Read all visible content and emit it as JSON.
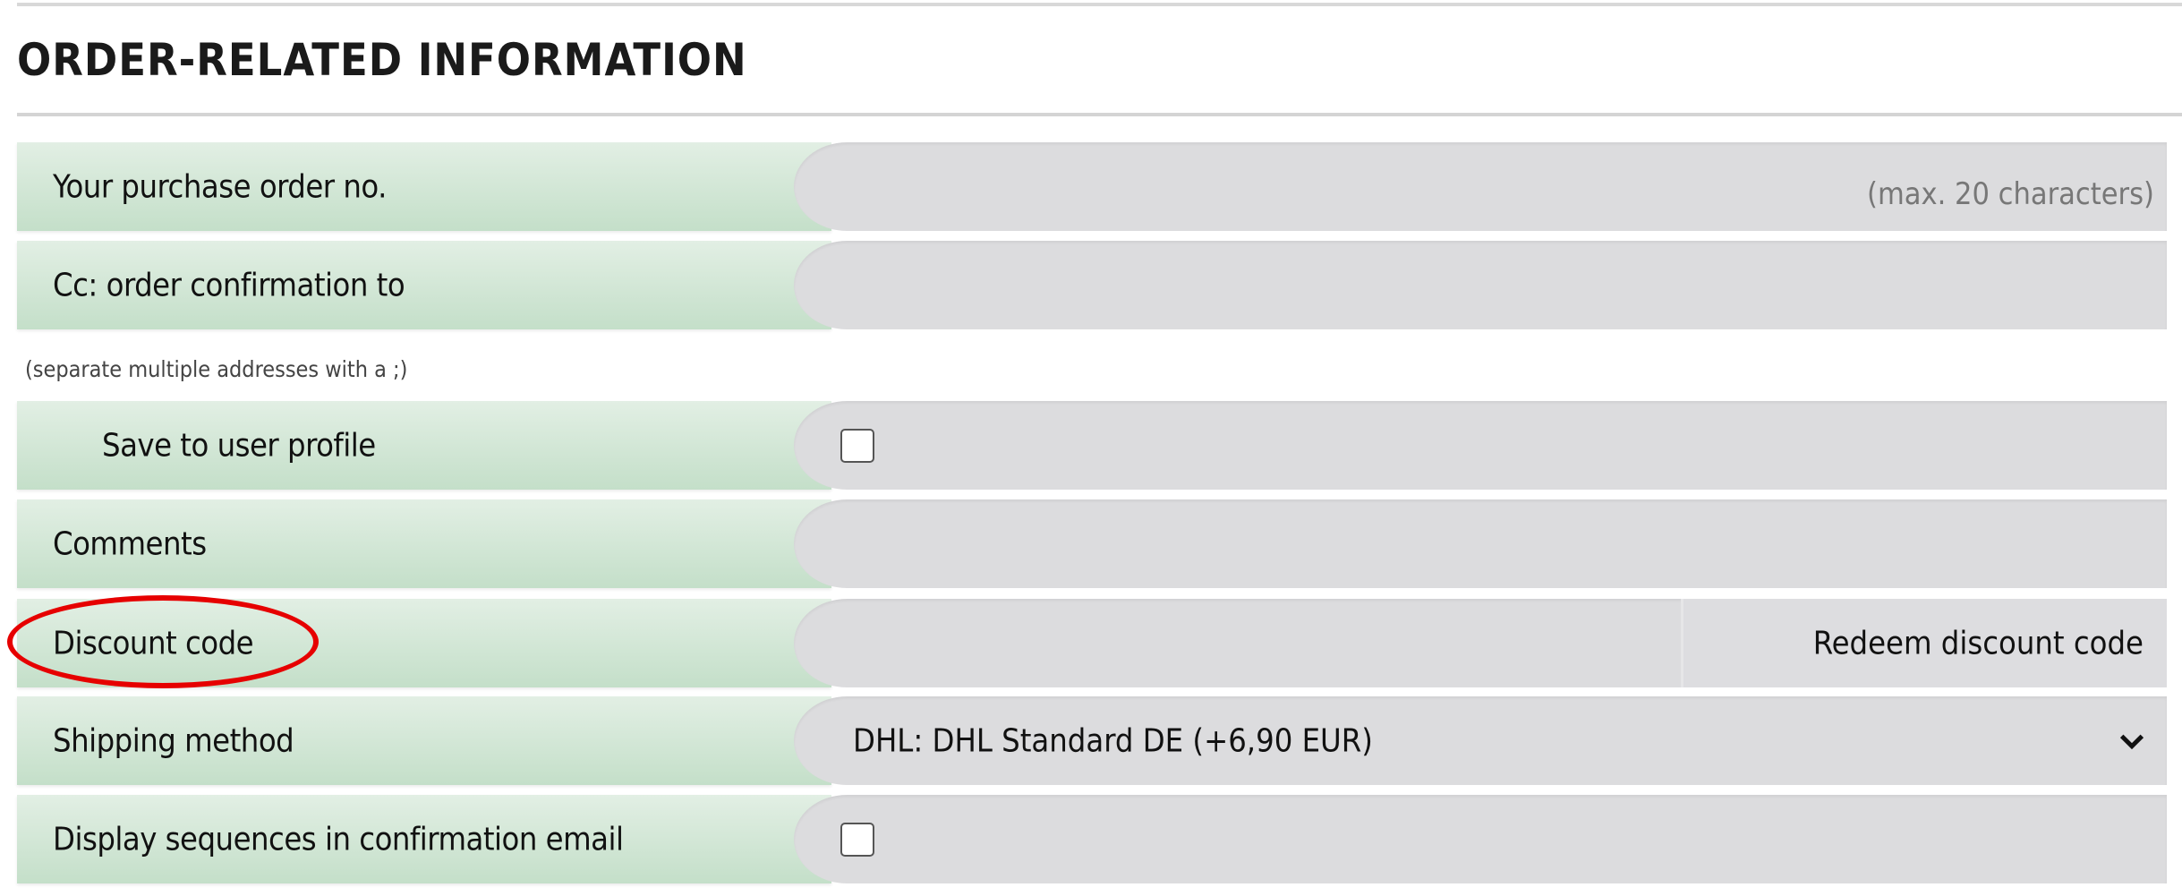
{
  "section": {
    "title": "ORDER-RELATED INFORMATION"
  },
  "fields": {
    "purchase_order": {
      "label": "Your purchase order no.",
      "value": "",
      "hint": "(max. 20 characters)"
    },
    "cc_confirmation": {
      "label": "Cc: order confirmation to",
      "value": "",
      "note": "(separate multiple addresses with a ;)"
    },
    "save_profile": {
      "label": "Save to user profile",
      "checked": false
    },
    "comments": {
      "label": "Comments",
      "value": ""
    },
    "discount_code": {
      "label": "Discount code",
      "value": "",
      "button": "Redeem discount code",
      "highlighted": true
    },
    "shipping_method": {
      "label": "Shipping method",
      "selected": "DHL: DHL Standard DE (+6,90 EUR)"
    },
    "display_sequences": {
      "label": "Display sequences in confirmation email",
      "checked": false
    }
  },
  "colors": {
    "label_bg_top": "#e2efe4",
    "label_bg_bottom": "#c4dfc9",
    "field_bg": "#dcdcde",
    "highlight": "#e60000"
  }
}
